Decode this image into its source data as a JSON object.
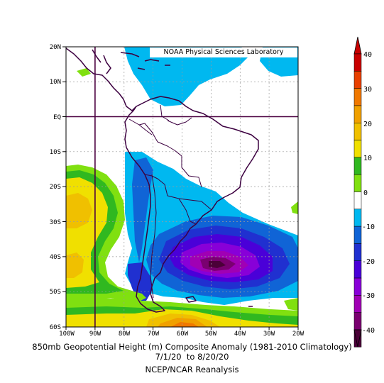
{
  "map": {
    "credit": "NOAA Physical Sciences Laboratory",
    "lat_labels": [
      "20N",
      "10N",
      "EQ",
      "10S",
      "20S",
      "30S",
      "40S",
      "50S",
      "60S"
    ],
    "lon_labels": [
      "100W",
      "90W",
      "80W",
      "70W",
      "60W",
      "50W",
      "40W",
      "30W",
      "20W"
    ],
    "extent": {
      "lon_min": -100,
      "lon_max": -20,
      "lat_min": -60,
      "lat_max": 20
    },
    "caption": {
      "line1": "850mb Geopotential Height (m) Composite Anomaly (1981-2010 Climatology)",
      "line2": "7/1/20  to 8/20/20",
      "line3": "NCEP/NCAR Reanalysis"
    },
    "anomaly_fields": [
      {
        "name": "south-atlantic-low",
        "center_lon": -50,
        "center_lat": -42,
        "min_value": -40
      },
      {
        "name": "pacific-high",
        "center_lon": -97,
        "center_lat": -30,
        "max_value": 25
      },
      {
        "name": "southern-ocean-high",
        "center_lon": -58,
        "center_lat": -60,
        "max_value": 35
      }
    ]
  },
  "colorbar": {
    "labels": [
      "40",
      "30",
      "20",
      "10",
      "0",
      "-10",
      "-20",
      "-30",
      "-40"
    ],
    "levels": [
      -40,
      -35,
      -30,
      -25,
      -20,
      -15,
      -10,
      -5,
      5,
      10,
      15,
      20,
      25,
      30,
      35,
      40
    ],
    "colors": {
      "n40": "#4b0038",
      "n35": "#7a0070",
      "n30": "#a000b4",
      "n25": "#8800d8",
      "n20": "#4a00d8",
      "n15": "#2030d0",
      "n10": "#1064d6",
      "n5": "#00b8f0",
      "zero": "#ffffff",
      "p5": "#80e010",
      "p10": "#30b820",
      "p15": "#f0e000",
      "p20": "#f0c000",
      "p25": "#f0a000",
      "p30": "#f07800",
      "p35": "#e84000",
      "p40": "#c80000"
    }
  }
}
